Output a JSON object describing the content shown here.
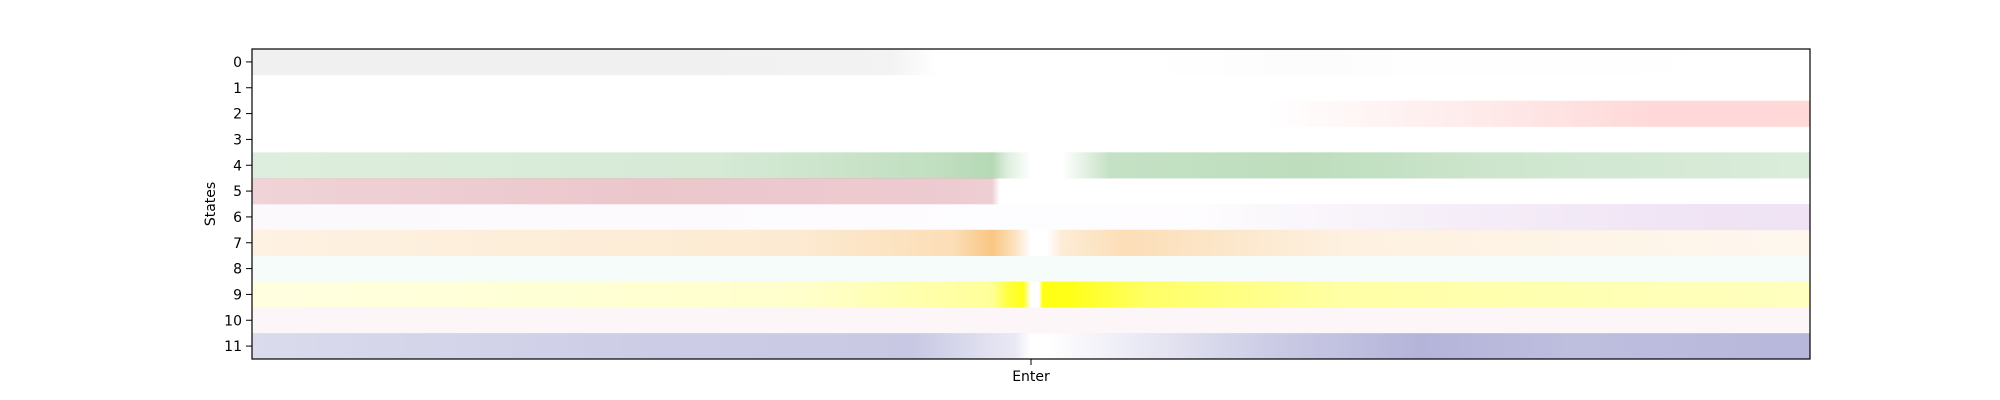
{
  "chart_data": {
    "type": "heatmap",
    "ylabel": "States",
    "xticks": [
      "Enter"
    ],
    "ylim": [
      0,
      11
    ],
    "x_domain": [
      -1,
      1
    ],
    "enter_x": 0,
    "grid": false,
    "legend": "none",
    "states": [
      {
        "label": "0",
        "color": "#c8c8c8",
        "profile": [
          [
            -1,
            0.28
          ],
          [
            -0.5,
            0.28
          ],
          [
            -0.18,
            0.22
          ],
          [
            -0.12,
            0.0
          ],
          [
            0.15,
            0.0
          ],
          [
            0.35,
            0.06
          ],
          [
            0.5,
            0.02
          ],
          [
            1,
            0.0
          ]
        ]
      },
      {
        "label": "1",
        "color": "#ffffff",
        "profile": [
          [
            -1,
            0.0
          ],
          [
            1,
            0.0
          ]
        ]
      },
      {
        "label": "2",
        "color": "#ff7f7f",
        "profile": [
          [
            -1,
            0.0
          ],
          [
            0.3,
            0.0
          ],
          [
            0.55,
            0.15
          ],
          [
            0.8,
            0.3
          ],
          [
            1,
            0.3
          ]
        ]
      },
      {
        "label": "3",
        "color": "#ffffff",
        "profile": [
          [
            -1,
            0.0
          ],
          [
            1,
            0.0
          ]
        ]
      },
      {
        "label": "4",
        "color": "#5aaa5a",
        "profile": [
          [
            -1,
            0.2
          ],
          [
            -0.4,
            0.25
          ],
          [
            -0.12,
            0.38
          ],
          [
            -0.05,
            0.45
          ],
          [
            -0.03,
            0.2
          ],
          [
            0.0,
            0.0
          ],
          [
            0.04,
            0.0
          ],
          [
            0.1,
            0.35
          ],
          [
            0.35,
            0.4
          ],
          [
            0.6,
            0.3
          ],
          [
            1,
            0.22
          ]
        ]
      },
      {
        "label": "5",
        "color": "#c0505f",
        "profile": [
          [
            -1,
            0.25
          ],
          [
            -0.5,
            0.32
          ],
          [
            -0.15,
            0.3
          ],
          [
            -0.05,
            0.28
          ],
          [
            -0.04,
            0.0
          ],
          [
            1,
            0.0
          ]
        ]
      },
      {
        "label": "6",
        "color": "#b57fcc",
        "profile": [
          [
            -1,
            0.05
          ],
          [
            0.2,
            0.02
          ],
          [
            0.5,
            0.12
          ],
          [
            0.8,
            0.2
          ],
          [
            1,
            0.22
          ]
        ]
      },
      {
        "label": "7",
        "color": "#f5a030",
        "profile": [
          [
            -1,
            0.14
          ],
          [
            -0.3,
            0.22
          ],
          [
            -0.1,
            0.35
          ],
          [
            -0.05,
            0.6
          ],
          [
            -0.02,
            0.3
          ],
          [
            0.0,
            0.0
          ],
          [
            0.02,
            0.0
          ],
          [
            0.04,
            0.2
          ],
          [
            0.12,
            0.35
          ],
          [
            0.4,
            0.15
          ],
          [
            1,
            0.08
          ]
        ]
      },
      {
        "label": "8",
        "color": "#b8e6d8",
        "profile": [
          [
            -1,
            0.12
          ],
          [
            1,
            0.12
          ]
        ]
      },
      {
        "label": "9",
        "color": "#ffff00",
        "profile": [
          [
            -1,
            0.12
          ],
          [
            -0.3,
            0.2
          ],
          [
            -0.05,
            0.4
          ],
          [
            -0.03,
            0.75
          ],
          [
            -0.01,
            0.9
          ],
          [
            0.0,
            0.0
          ],
          [
            0.01,
            0.0
          ],
          [
            0.015,
            0.92
          ],
          [
            0.05,
            0.9
          ],
          [
            0.15,
            0.6
          ],
          [
            0.4,
            0.35
          ],
          [
            1,
            0.25
          ]
        ]
      },
      {
        "label": "10",
        "color": "#f0b8c8",
        "profile": [
          [
            -1,
            0.12
          ],
          [
            1,
            0.12
          ]
        ]
      },
      {
        "label": "11",
        "color": "#6f6fb8",
        "profile": [
          [
            -1,
            0.25
          ],
          [
            -0.5,
            0.35
          ],
          [
            -0.15,
            0.38
          ],
          [
            -0.02,
            0.15
          ],
          [
            0.0,
            0.0
          ],
          [
            0.02,
            0.0
          ],
          [
            0.1,
            0.1
          ],
          [
            0.3,
            0.35
          ],
          [
            0.5,
            0.52
          ],
          [
            0.7,
            0.45
          ],
          [
            1,
            0.5
          ]
        ]
      }
    ]
  }
}
